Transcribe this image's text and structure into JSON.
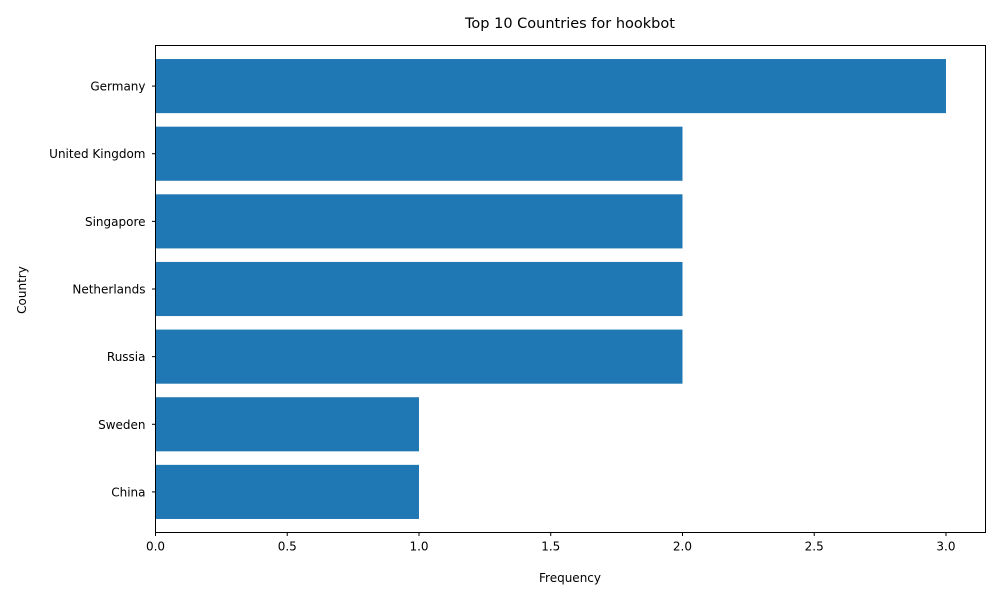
{
  "chart_data": {
    "type": "bar",
    "orientation": "horizontal",
    "title": "Top 10 Countries for hookbot",
    "xlabel": "Frequency",
    "ylabel": "Country",
    "categories": [
      "China",
      "Sweden",
      "Russia",
      "Netherlands",
      "Singapore",
      "United Kingdom",
      "Germany"
    ],
    "values": [
      1,
      1,
      2,
      2,
      2,
      2,
      3
    ],
    "xlim": [
      0,
      3.15
    ],
    "xticks": [
      "0.0",
      "0.5",
      "1.0",
      "1.5",
      "2.0",
      "2.5",
      "3.0"
    ],
    "bar_color": "#1f77b4",
    "grid": false,
    "legend": "none"
  }
}
